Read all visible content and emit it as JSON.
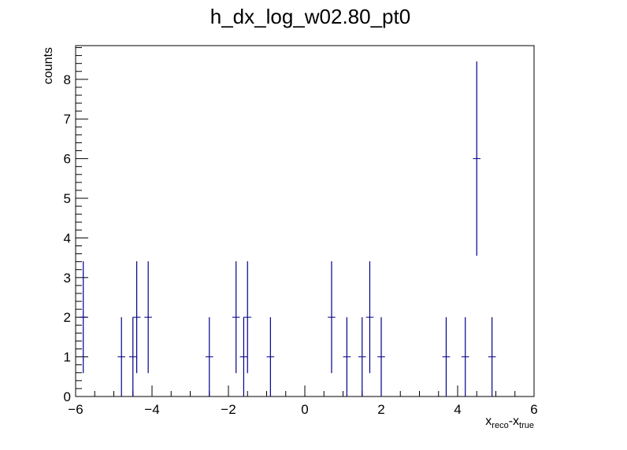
{
  "chart_data": {
    "type": "scatter",
    "title": "h_dx_log_w02.80_pt0",
    "xlabel": {
      "base1": "x",
      "sub1": "reco",
      "sep": "-x",
      "sub2": "true"
    },
    "ylabel": "counts",
    "xlim": [
      -6,
      6
    ],
    "ylim": [
      0,
      8.85
    ],
    "x_major_ticks": [
      -6,
      -4,
      -2,
      0,
      2,
      4,
      6
    ],
    "x_tick_labels": [
      "−6",
      "−4",
      "−2",
      "0",
      "2",
      "4",
      "6"
    ],
    "y_major_ticks": [
      0,
      1,
      2,
      3,
      4,
      5,
      6,
      7,
      8
    ],
    "y_tick_labels": [
      "0",
      "1",
      "2",
      "3",
      "4",
      "5",
      "6",
      "7",
      "8"
    ],
    "bin_width": 0.2,
    "marker_color": "#00008b",
    "grid": false,
    "points": [
      {
        "x": -5.8,
        "y": 2,
        "err": 1.41
      },
      {
        "x": -4.8,
        "y": 1,
        "err": 1.0
      },
      {
        "x": -4.5,
        "y": 1,
        "err": 1.0
      },
      {
        "x": -4.4,
        "y": 2,
        "err": 1.41
      },
      {
        "x": -4.1,
        "y": 2,
        "err": 1.41
      },
      {
        "x": -2.5,
        "y": 1,
        "err": 1.0
      },
      {
        "x": -1.8,
        "y": 2,
        "err": 1.41
      },
      {
        "x": -1.6,
        "y": 1,
        "err": 1.0
      },
      {
        "x": -1.5,
        "y": 2,
        "err": 1.41
      },
      {
        "x": -0.9,
        "y": 1,
        "err": 1.0
      },
      {
        "x": 0.7,
        "y": 2,
        "err": 1.41
      },
      {
        "x": 1.1,
        "y": 1,
        "err": 1.0
      },
      {
        "x": 1.5,
        "y": 1,
        "err": 1.0
      },
      {
        "x": 1.7,
        "y": 2,
        "err": 1.41
      },
      {
        "x": 2.0,
        "y": 1,
        "err": 1.0
      },
      {
        "x": 3.7,
        "y": 1,
        "err": 1.0
      },
      {
        "x": 4.2,
        "y": 1,
        "err": 1.0
      },
      {
        "x": 4.5,
        "y": 6,
        "err": 2.45
      },
      {
        "x": 4.9,
        "y": 1,
        "err": 1.0
      }
    ]
  }
}
